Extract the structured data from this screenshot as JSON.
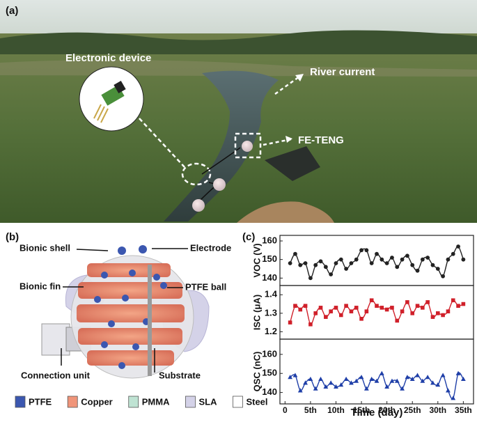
{
  "panel_a": {
    "label": "(a)",
    "annotations": [
      "Electronic device",
      "River current",
      "FE-TENG"
    ]
  },
  "panel_b": {
    "label": "(b)",
    "annotations": [
      "Bionic shell",
      "Electrode",
      "Bionic fin",
      "PTFE ball",
      "Connection unit",
      "Substrate"
    ],
    "legend": [
      {
        "name": "PTFE",
        "color": "#3b57b0"
      },
      {
        "name": "Copper",
        "color": "#f0957a"
      },
      {
        "name": "PMMA",
        "color": "#bfe3d3"
      },
      {
        "name": "SLA",
        "color": "#d4d2e8"
      },
      {
        "name": "Steel",
        "color": "#ffffff"
      }
    ]
  },
  "panel_c": {
    "label": "(c)"
  },
  "chart_data": [
    {
      "type": "scatter",
      "ylabel": "VOC (V)",
      "color": "#222222",
      "marker": "circle",
      "xlim": [
        -1,
        37
      ],
      "ylim": [
        136,
        163
      ],
      "yticks": [
        140,
        150,
        160
      ],
      "x": [
        1,
        2,
        3,
        4,
        5,
        6,
        7,
        8,
        9,
        10,
        11,
        12,
        13,
        14,
        15,
        16,
        17,
        18,
        19,
        20,
        21,
        22,
        23,
        24,
        25,
        26,
        27,
        28,
        29,
        30,
        31,
        32,
        33,
        34,
        35
      ],
      "values": [
        148,
        153,
        147,
        148,
        140,
        147,
        149,
        146,
        142,
        148,
        150,
        145,
        148,
        150,
        155,
        155,
        148,
        153,
        150,
        148,
        151,
        146,
        150,
        152,
        147,
        144,
        150,
        151,
        147,
        145,
        141,
        150,
        153,
        157,
        150
      ]
    },
    {
      "type": "scatter",
      "ylabel": "ISC (μA)",
      "color": "#d0202a",
      "marker": "square",
      "xlim": [
        -1,
        37
      ],
      "ylim": [
        1.16,
        1.45
      ],
      "yticks": [
        1.2,
        1.3,
        1.4
      ],
      "x": [
        1,
        2,
        3,
        4,
        5,
        6,
        7,
        8,
        9,
        10,
        11,
        12,
        13,
        14,
        15,
        16,
        17,
        18,
        19,
        20,
        21,
        22,
        23,
        24,
        25,
        26,
        27,
        28,
        29,
        30,
        31,
        32,
        33,
        34,
        35
      ],
      "values": [
        1.25,
        1.34,
        1.32,
        1.34,
        1.24,
        1.3,
        1.33,
        1.28,
        1.31,
        1.33,
        1.29,
        1.34,
        1.31,
        1.33,
        1.27,
        1.31,
        1.37,
        1.34,
        1.33,
        1.32,
        1.33,
        1.26,
        1.31,
        1.36,
        1.3,
        1.34,
        1.33,
        1.36,
        1.28,
        1.3,
        1.29,
        1.31,
        1.37,
        1.34,
        1.35
      ]
    },
    {
      "type": "scatter",
      "ylabel": "QSC (nC)",
      "color": "#1f3fa8",
      "marker": "triangle",
      "xlim": [
        -1,
        37
      ],
      "ylim": [
        134,
        168
      ],
      "yticks": [
        140,
        150,
        160
      ],
      "xlabel": "Time (day)",
      "xticks": [
        0,
        {
          "value": 5,
          "label": "5th"
        },
        {
          "value": 10,
          "label": "10th"
        },
        {
          "value": 15,
          "label": "15th"
        },
        {
          "value": 20,
          "label": "20th"
        },
        {
          "value": 25,
          "label": "25th"
        },
        {
          "value": 30,
          "label": "30th"
        },
        {
          "value": 35,
          "label": "35th"
        }
      ],
      "x": [
        1,
        2,
        3,
        4,
        5,
        6,
        7,
        8,
        9,
        10,
        11,
        12,
        13,
        14,
        15,
        16,
        17,
        18,
        19,
        20,
        21,
        22,
        23,
        24,
        25,
        26,
        27,
        28,
        29,
        30,
        31,
        32,
        33,
        34,
        35
      ],
      "values": [
        148,
        149,
        141,
        145,
        147,
        142,
        147,
        143,
        145,
        143,
        144,
        147,
        145,
        146,
        148,
        142,
        147,
        146,
        150,
        143,
        146,
        146,
        142,
        148,
        147,
        149,
        146,
        148,
        145,
        144,
        149,
        141,
        137,
        150,
        147
      ]
    }
  ]
}
